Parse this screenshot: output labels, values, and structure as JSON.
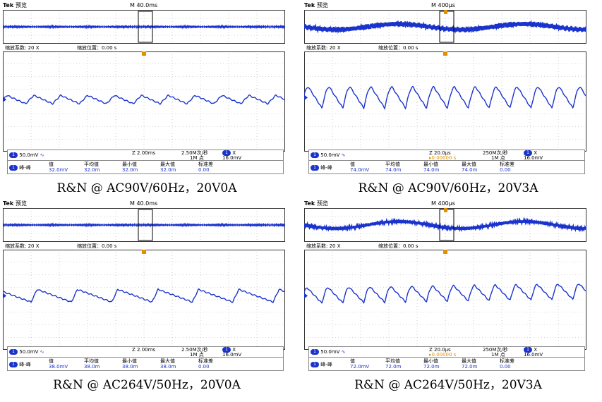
{
  "panels": [
    {
      "id": "p1",
      "caption": "R&N @ AC90V/60Hz，20V0A",
      "brand": "Tek",
      "mode": "预览",
      "timebase": "M 40.0ms",
      "zoom_factor_label": "缩放系数: 20 X",
      "zoom_pos_label": "缩放位置：0.00 s",
      "ch_scale": "50.0mV",
      "zoom_time": "Z 2.00ms",
      "sample_rate": "2.50M次/秒",
      "points": "1M 点",
      "trig_x": "X",
      "trig_level": "16.0mV",
      "delay": "",
      "meas_label": "峰-峰",
      "meas_headers": [
        "值",
        "平均值",
        "最小值",
        "最大值",
        "标准差"
      ],
      "meas_values": [
        "32.0mV",
        "32.0m",
        "32.0m",
        "32.0m",
        "0.00"
      ],
      "wave": "tri_small"
    },
    {
      "id": "p2",
      "caption": "R&N @ AC90V/60Hz，20V3A",
      "brand": "Tek",
      "mode": "预览",
      "timebase": "M 400µs",
      "zoom_factor_label": "缩放系数: 20 X",
      "zoom_pos_label": "缩放位置：0.00 s",
      "ch_scale": "50.0mV",
      "zoom_time": "Z 20.0µs",
      "sample_rate": "250M次/秒",
      "points": "1M 点",
      "trig_x": "X",
      "trig_level": "16.0mV",
      "delay": "▸0.00000 s",
      "meas_label": "峰-峰",
      "meas_headers": [
        "值",
        "平均值",
        "最小值",
        "最大值",
        "标准差"
      ],
      "meas_values": [
        "74.0mV",
        "74.0m",
        "74.0m",
        "74.0m",
        "0.00"
      ],
      "wave": "arch"
    },
    {
      "id": "p3",
      "caption": "R&N @ AC264V/50Hz，20V0A",
      "brand": "Tek",
      "mode": "预览",
      "timebase": "M 40.0ms",
      "zoom_factor_label": "缩放系数: 20 X",
      "zoom_pos_label": "缩放位置：0.00 s",
      "ch_scale": "50.0mV",
      "zoom_time": "Z 2.00ms",
      "sample_rate": "2.50M次/秒",
      "points": "1M 点",
      "trig_x": "X",
      "trig_level": "16.0mV",
      "delay": "",
      "meas_label": "峰-峰",
      "meas_headers": [
        "值",
        "平均值",
        "最小值",
        "最大值",
        "标准差"
      ],
      "meas_values": [
        "38.0mV",
        "38.0m",
        "38.0m",
        "38.0m",
        "0.00"
      ],
      "wave": "saw"
    },
    {
      "id": "p4",
      "caption": "R&N @ AC264V/50Hz，20V3A",
      "brand": "Tek",
      "mode": "预览",
      "timebase": "M 400µs",
      "zoom_factor_label": "缩放系数: 20 X",
      "zoom_pos_label": "缩放位置：0.00 s",
      "ch_scale": "50.0mV",
      "zoom_time": "Z 20.0µs",
      "sample_rate": "250M次/秒",
      "points": "1M 点",
      "trig_x": "X",
      "trig_level": "16.0mV",
      "delay": "▸0.00000 s",
      "meas_label": "峰-峰",
      "meas_headers": [
        "值",
        "平均值",
        "最小值",
        "最大值",
        "标准差"
      ],
      "meas_values": [
        "72.0mV",
        "72.0m",
        "72.0m",
        "72.0m",
        "0.00"
      ],
      "wave": "arch_rise"
    }
  ],
  "colors": {
    "trace": "#1a33cc",
    "grid": "#b0b0b0",
    "trigger": "#e39000",
    "border": "#333333"
  }
}
